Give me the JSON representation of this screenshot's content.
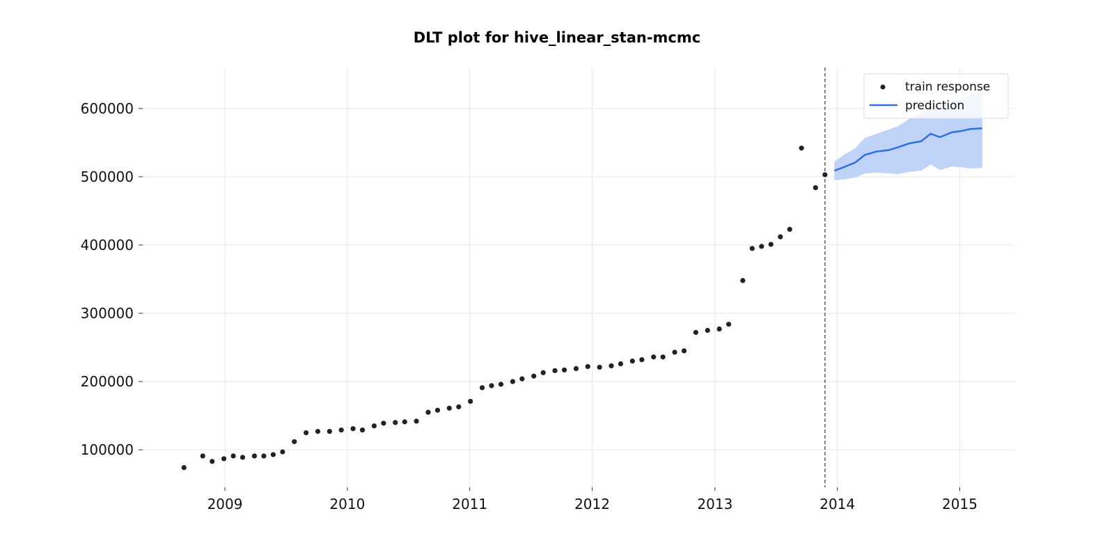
{
  "chart_data": {
    "type": "scatter",
    "title": "DLT plot for hive_linear_stan-mcmc",
    "xlabel": "",
    "ylabel": "",
    "xlim": [
      "2008-05-01",
      "2015-06-15"
    ],
    "ylim": [
      45000,
      660000
    ],
    "grid": true,
    "legend_placement": "top-right",
    "x_ticks": [
      "2009-01-01",
      "2010-01-01",
      "2011-01-01",
      "2012-01-01",
      "2013-01-01",
      "2014-01-01",
      "2015-01-01"
    ],
    "x_tick_labels": [
      "2009",
      "2010",
      "2011",
      "2012",
      "2013",
      "2014",
      "2015"
    ],
    "y_ticks": [
      100000,
      200000,
      300000,
      400000,
      500000,
      600000
    ],
    "y_tick_labels": [
      "100000",
      "200000",
      "300000",
      "400000",
      "500000",
      "600000"
    ],
    "cutoff_date": "2013-11-25",
    "series": [
      {
        "name": "train response",
        "kind": "scatter",
        "color": "#222222",
        "points": [
          [
            "2008-09-01",
            74000
          ],
          [
            "2008-10-27",
            91000
          ],
          [
            "2008-11-24",
            83000
          ],
          [
            "2008-12-29",
            87000
          ],
          [
            "2009-01-26",
            91000
          ],
          [
            "2009-02-23",
            89000
          ],
          [
            "2009-03-30",
            91000
          ],
          [
            "2009-04-27",
            91000
          ],
          [
            "2009-05-25",
            93000
          ],
          [
            "2009-06-22",
            97000
          ],
          [
            "2009-07-27",
            112000
          ],
          [
            "2009-08-31",
            125000
          ],
          [
            "2009-10-05",
            127000
          ],
          [
            "2009-11-09",
            127000
          ],
          [
            "2009-12-14",
            129000
          ],
          [
            "2010-01-18",
            131000
          ],
          [
            "2010-02-15",
            129000
          ],
          [
            "2010-03-22",
            135000
          ],
          [
            "2010-04-19",
            139000
          ],
          [
            "2010-05-24",
            140000
          ],
          [
            "2010-06-21",
            141000
          ],
          [
            "2010-07-26",
            142000
          ],
          [
            "2010-08-30",
            155000
          ],
          [
            "2010-09-27",
            158000
          ],
          [
            "2010-11-01",
            161000
          ],
          [
            "2010-11-29",
            163000
          ],
          [
            "2011-01-03",
            171000
          ],
          [
            "2011-02-07",
            191000
          ],
          [
            "2011-03-07",
            194000
          ],
          [
            "2011-04-04",
            196000
          ],
          [
            "2011-05-09",
            200000
          ],
          [
            "2011-06-06",
            204000
          ],
          [
            "2011-07-11",
            208000
          ],
          [
            "2011-08-08",
            213000
          ],
          [
            "2011-09-12",
            216000
          ],
          [
            "2011-10-10",
            217000
          ],
          [
            "2011-11-14",
            219000
          ],
          [
            "2011-12-19",
            222000
          ],
          [
            "2012-01-23",
            221000
          ],
          [
            "2012-02-27",
            223000
          ],
          [
            "2012-03-26",
            226000
          ],
          [
            "2012-04-30",
            230000
          ],
          [
            "2012-05-28",
            232000
          ],
          [
            "2012-07-02",
            236000
          ],
          [
            "2012-07-30",
            236000
          ],
          [
            "2012-09-03",
            243000
          ],
          [
            "2012-10-01",
            245000
          ],
          [
            "2012-11-05",
            272000
          ],
          [
            "2012-12-10",
            275000
          ],
          [
            "2013-01-14",
            277000
          ],
          [
            "2013-02-11",
            284000
          ],
          [
            "2013-03-25",
            348000
          ],
          [
            "2013-04-22",
            395000
          ],
          [
            "2013-05-20",
            398000
          ],
          [
            "2013-06-17",
            401000
          ],
          [
            "2013-07-15",
            412000
          ],
          [
            "2013-08-12",
            423000
          ],
          [
            "2013-09-16",
            542000
          ],
          [
            "2013-10-28",
            484000
          ],
          [
            "2013-11-25",
            503000
          ]
        ]
      },
      {
        "name": "prediction",
        "kind": "line",
        "color": "#2f6fde",
        "band_color": "#bfd3f8",
        "points": [
          [
            "2013-12-23",
            509000,
            495000,
            522000
          ],
          [
            "2014-01-20",
            514000,
            496000,
            532000
          ],
          [
            "2014-02-24",
            521000,
            499000,
            542000
          ],
          [
            "2014-03-24",
            532000,
            505000,
            557000
          ],
          [
            "2014-04-28",
            537000,
            506000,
            563000
          ],
          [
            "2014-06-02",
            539000,
            505000,
            569000
          ],
          [
            "2014-06-30",
            543000,
            504000,
            574000
          ],
          [
            "2014-08-04",
            549000,
            507000,
            585000
          ],
          [
            "2014-09-08",
            552000,
            509000,
            593000
          ],
          [
            "2014-10-06",
            563000,
            518000,
            600000
          ],
          [
            "2014-11-03",
            558000,
            510000,
            604000
          ],
          [
            "2014-12-08",
            565000,
            515000,
            609000
          ],
          [
            "2015-01-05",
            567000,
            514000,
            614000
          ],
          [
            "2015-02-02",
            570000,
            512000,
            620000
          ],
          [
            "2015-03-09",
            571000,
            513000,
            626000
          ]
        ]
      }
    ]
  }
}
